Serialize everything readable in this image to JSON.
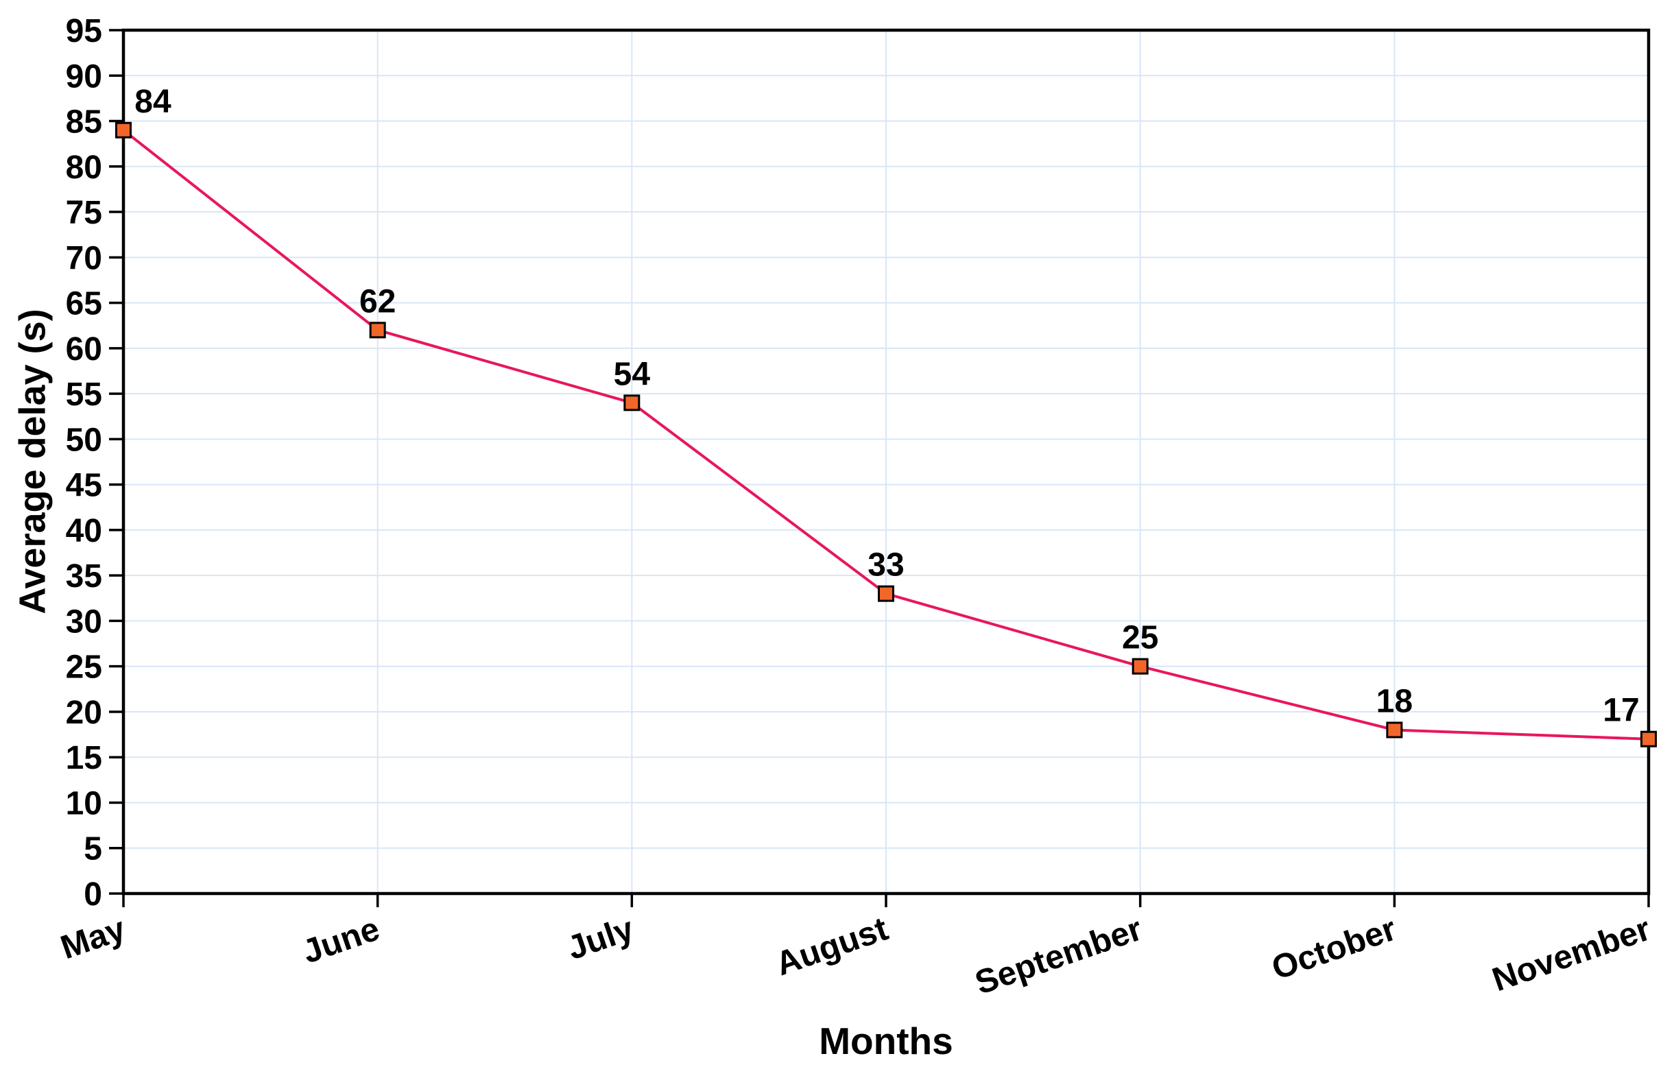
{
  "chart_data": {
    "type": "line",
    "title": "",
    "categories": [
      "May",
      "June",
      "July",
      "August",
      "September",
      "October",
      "November"
    ],
    "values": [
      84,
      62,
      54,
      33,
      25,
      18,
      17
    ],
    "series": [
      {
        "name": "Average delay",
        "values": [
          84,
          62,
          54,
          33,
          25,
          18,
          17
        ]
      }
    ],
    "data_labels": [
      "84",
      "62",
      "54",
      "33",
      "25",
      "18",
      "17"
    ],
    "xlabel": "Months",
    "ylabel": "Average delay (s)",
    "ylim": [
      0,
      95
    ],
    "ytick_step": 5,
    "yticks": [
      0,
      5,
      10,
      15,
      20,
      25,
      30,
      35,
      40,
      45,
      50,
      55,
      60,
      65,
      70,
      75,
      80,
      85,
      90,
      95
    ],
    "grid": true,
    "legend_position": "none",
    "colors": {
      "line": "#e8175a",
      "marker_fill": "#f2662a",
      "marker_stroke": "#000000",
      "gridline": "#d9e6f6",
      "axis": "#000000",
      "text": "#000000"
    }
  }
}
